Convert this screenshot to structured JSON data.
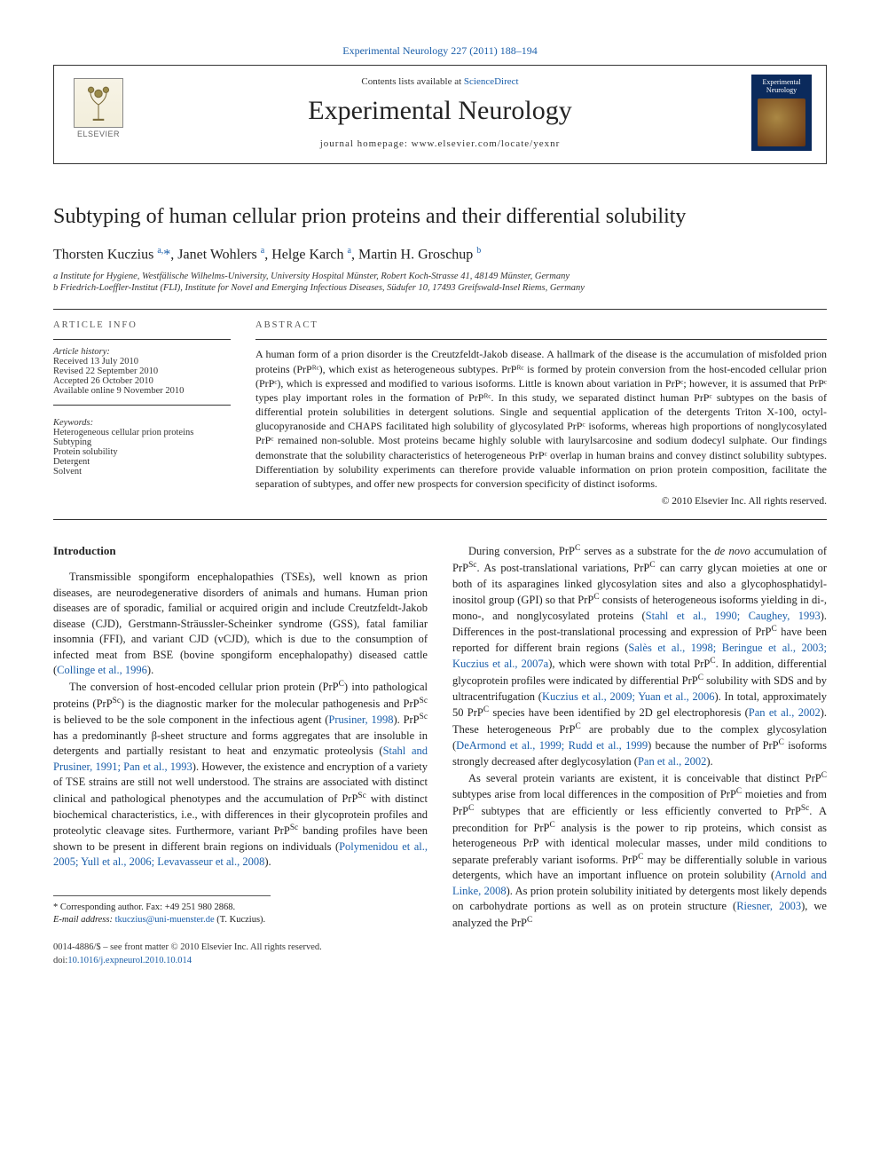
{
  "journal_ref": "Experimental Neurology 227 (2011) 188–194",
  "header": {
    "contents_prefix": "Contents lists available at ",
    "contents_link": "ScienceDirect",
    "journal_name": "Experimental Neurology",
    "homepage_prefix": "journal homepage: ",
    "homepage_url": "www.elsevier.com/locate/yexnr",
    "publisher_logo_text": "ELSEVIER",
    "cover_text": "Experimental Neurology"
  },
  "article": {
    "title": "Subtyping of human cellular prion proteins and their differential solubility",
    "authors_html": "Thorsten Kuczius <sup>a,</sup><span class='star'>*</span>, Janet Wohlers <sup>a</sup>, Helge Karch <sup>a</sup>, Martin H. Groschup <sup>b</sup>",
    "affiliations": [
      "a Institute for Hygiene, Westfälische Wilhelms-University, University Hospital Münster, Robert Koch-Strasse 41, 48149 Münster, Germany",
      "b Friedrich-Loeffler-Institut (FLI), Institute for Novel and Emerging Infectious Diseases, Südufer 10, 17493 Greifswald-Insel Riems, Germany"
    ]
  },
  "info": {
    "heading": "article info",
    "history_label": "Article history:",
    "history": [
      "Received 13 July 2010",
      "Revised 22 September 2010",
      "Accepted 26 October 2010",
      "Available online 9 November 2010"
    ],
    "keywords_label": "Keywords:",
    "keywords": [
      "Heterogeneous cellular prion proteins",
      "Subtyping",
      "Protein solubility",
      "Detergent",
      "Solvent"
    ]
  },
  "abstract": {
    "heading": "abstract",
    "text": "A human form of a prion disorder is the Creutzfeldt-Jakob disease. A hallmark of the disease is the accumulation of misfolded prion proteins (PrPᴿᶜ), which exist as heterogeneous subtypes. PrPᴿᶜ is formed by protein conversion from the host-encoded cellular prion (PrPᶜ), which is expressed and modified to various isoforms. Little is known about variation in PrPᶜ; however, it is assumed that PrPᶜ types play important roles in the formation of PrPᴿᶜ. In this study, we separated distinct human PrPᶜ subtypes on the basis of differential protein solubilities in detergent solutions. Single and sequential application of the detergents Triton X-100, octyl-glucopyranoside and CHAPS facilitated high solubility of glycosylated PrPᶜ isoforms, whereas high proportions of nonglycosylated PrPᶜ remained non-soluble. Most proteins became highly soluble with laurylsarcosine and sodium dodecyl sulphate. Our findings demonstrate that the solubility characteristics of heterogeneous PrPᶜ overlap in human brains and convey distinct solubility subtypes. Differentiation by solubility experiments can therefore provide valuable information on prion protein composition, facilitate the separation of subtypes, and offer new prospects for conversion specificity of distinct isoforms.",
    "copyright": "© 2010 Elsevier Inc. All rights reserved."
  },
  "body": {
    "section_heading": "Introduction",
    "left_paragraphs": [
      "Transmissible spongiform encephalopathies (TSEs), well known as prion diseases, are neurodegenerative disorders of animals and humans. Human prion diseases are of sporadic, familial or acquired origin and include Creutzfeldt-Jakob disease (CJD), Gerstmann-Sträussler-Scheinker syndrome (GSS), fatal familiar insomnia (FFI), and variant CJD (vCJD), which is due to the consumption of infected meat from BSE (bovine spongiform encephalopathy) diseased cattle (<a>Collinge et al., 1996</a>).",
      "The conversion of host-encoded cellular prion protein (PrP<sup>C</sup>) into pathological proteins (PrP<sup>Sc</sup>) is the diagnostic marker for the molecular pathogenesis and PrP<sup>Sc</sup> is believed to be the sole component in the infectious agent (<a>Prusiner, 1998</a>). PrP<sup>Sc</sup> has a predominantly β-sheet structure and forms aggregates that are insoluble in detergents and partially resistant to heat and enzymatic proteolysis (<a>Stahl and Prusiner, 1991; Pan et al., 1993</a>). However, the existence and encryption of a variety of TSE strains are still not well understood. The strains are associated with distinct clinical and pathological phenotypes and the accumulation of PrP<sup>Sc</sup> with distinct biochemical characteristics, i.e., with differences in their glycoprotein profiles and proteolytic cleavage sites. Furthermore, variant PrP<sup>Sc</sup> banding profiles have been shown to be present in different brain regions on individuals (<a>Polymenidou et al., 2005; Yull et al., 2006; Levavasseur et al., 2008</a>)."
    ],
    "right_paragraphs": [
      "During conversion, PrP<sup>C</sup> serves as a substrate for the <i>de novo</i> accumulation of PrP<sup>Sc</sup>. As post-translational variations, PrP<sup>C</sup> can carry glycan moieties at one or both of its asparagines linked glycosylation sites and also a glycophosphatidyl-inositol group (GPI) so that PrP<sup>C</sup> consists of heterogeneous isoforms yielding in di-, mono-, and nonglycosylated proteins (<a>Stahl et al., 1990; Caughey, 1993</a>). Differences in the post-translational processing and expression of PrP<sup>C</sup> have been reported for different brain regions (<a>Salès et al., 1998; Beringue et al., 2003; Kuczius et al., 2007a</a>), which were shown with total PrP<sup>C</sup>. In addition, differential glycoprotein profiles were indicated by differential PrP<sup>C</sup> solubility with SDS and by ultracentrifugation (<a>Kuczius et al., 2009; Yuan et al., 2006</a>). In total, approximately 50 PrP<sup>C</sup> species have been identified by 2D gel electrophoresis (<a>Pan et al., 2002</a>). These heterogeneous PrP<sup>C</sup> are probably due to the complex glycosylation (<a>DeArmond et al., 1999; Rudd et al., 1999</a>) because the number of PrP<sup>C</sup> isoforms strongly decreased after deglycosylation (<a>Pan et al., 2002</a>).",
      "As several protein variants are existent, it is conceivable that distinct PrP<sup>C</sup> subtypes arise from local differences in the composition of PrP<sup>C</sup> moieties and from PrP<sup>C</sup> subtypes that are efficiently or less efficiently converted to PrP<sup>Sc</sup>. A precondition for PrP<sup>C</sup> analysis is the power to rip proteins, which consist as heterogeneous PrP with identical molecular masses, under mild conditions to separate preferably variant isoforms. PrP<sup>C</sup> may be differentially soluble in various detergents, which have an important influence on protein solubility (<a>Arnold and Linke, 2008</a>). As prion protein solubility initiated by detergents most likely depends on carbohydrate portions as well as on protein structure (<a>Riesner, 2003</a>), we analyzed the PrP<sup>C</sup>"
    ]
  },
  "footnotes": {
    "corresponding": "* Corresponding author. Fax: +49 251 980 2868.",
    "email_label": "E-mail address:",
    "email": "tkuczius@uni-muenster.de",
    "email_who": "(T. Kuczius)."
  },
  "footer": {
    "line1": "0014-4886/$ – see front matter © 2010 Elsevier Inc. All rights reserved.",
    "doi_label": "doi:",
    "doi": "10.1016/j.expneurol.2010.10.014"
  },
  "colors": {
    "link": "#1b5faa",
    "text": "#222222",
    "rule": "#333333"
  }
}
